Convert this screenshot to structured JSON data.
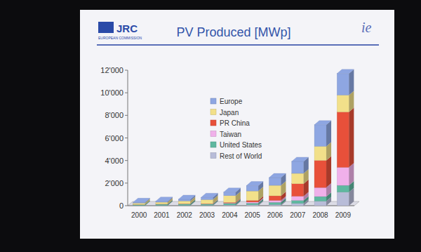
{
  "header": {
    "logo": "JRC",
    "org": "EUROPEAN COMMISSION",
    "badge": "ie"
  },
  "chart_data": {
    "type": "bar",
    "title": "PV Produced [MWp]",
    "stacked": true,
    "grid": false,
    "legend": "center",
    "categories": [
      "2000",
      "2001",
      "2002",
      "2003",
      "2004",
      "2005",
      "2006",
      "2007",
      "2008",
      "2009"
    ],
    "ylim": [
      0,
      12000
    ],
    "yticks": [
      0,
      {
        "value": 2000,
        "label": "2'000"
      },
      {
        "value": 4000,
        "label": "4'000"
      },
      {
        "value": 6000,
        "label": "6'000"
      },
      {
        "value": 8000,
        "label": "8'000"
      },
      {
        "value": 10000,
        "label": "10'000"
      },
      {
        "value": 12000,
        "label": "12'000"
      }
    ],
    "series": [
      {
        "name": "Europe",
        "color": "#8ea6e2",
        "values": [
          60,
          85,
          135,
          190,
          310,
          470,
          680,
          1060,
          1900,
          1900
        ]
      },
      {
        "name": "Japan",
        "color": "#f2e08a",
        "values": [
          130,
          170,
          250,
          360,
          600,
          830,
          930,
          920,
          1250,
          1500
        ]
      },
      {
        "name": "PR China",
        "color": "#e8503a",
        "values": [
          5,
          10,
          15,
          20,
          50,
          150,
          400,
          1100,
          2400,
          4900
        ]
      },
      {
        "name": "Taiwan",
        "color": "#f0b0ea",
        "values": [
          0,
          5,
          10,
          20,
          40,
          90,
          170,
          370,
          800,
          1600
        ]
      },
      {
        "name": "United States",
        "color": "#5fb8a0",
        "values": [
          75,
          100,
          120,
          100,
          140,
          150,
          200,
          270,
          410,
          600
        ]
      },
      {
        "name": "Rest of World",
        "color": "#b8bcd8",
        "values": [
          20,
          25,
          30,
          40,
          60,
          80,
          100,
          200,
          400,
          1200
        ]
      }
    ]
  }
}
